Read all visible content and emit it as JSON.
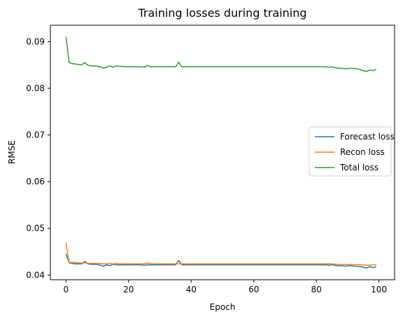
{
  "chart_data": {
    "type": "line",
    "title": "Training losses during training",
    "xlabel": "Epoch",
    "ylabel": "RMSE",
    "xlim": [
      -5,
      105
    ],
    "ylim": [
      0.039,
      0.0935
    ],
    "xticks": [
      0,
      20,
      40,
      60,
      80,
      100
    ],
    "yticks": [
      0.04,
      0.05,
      0.06,
      0.07,
      0.08,
      0.09
    ],
    "ytick_labels": [
      "0.04",
      "0.05",
      "0.06",
      "0.07",
      "0.08",
      "0.09"
    ],
    "legend_position": "center-right",
    "grid": false,
    "series": [
      {
        "name": "Forecast loss",
        "color": "#1f77b4",
        "values": [
          0.0445,
          0.0426,
          0.0425,
          0.0424,
          0.0424,
          0.0424,
          0.0429,
          0.0424,
          0.0423,
          0.0423,
          0.0423,
          0.0421,
          0.0419,
          0.0422,
          0.042,
          0.0423,
          0.0422,
          0.0422,
          0.0422,
          0.0422,
          0.0422,
          0.0422,
          0.0422,
          0.0422,
          0.0422,
          0.0421,
          0.0422,
          0.0422,
          0.0422,
          0.0422,
          0.0422,
          0.0422,
          0.0422,
          0.0422,
          0.0422,
          0.0422,
          0.0431,
          0.0422,
          0.0422,
          0.0422,
          0.0422,
          0.0422,
          0.0422,
          0.0422,
          0.0422,
          0.0422,
          0.0422,
          0.0422,
          0.0422,
          0.0422,
          0.0422,
          0.0422,
          0.0422,
          0.0422,
          0.0422,
          0.0422,
          0.0422,
          0.0422,
          0.0422,
          0.0422,
          0.0422,
          0.0422,
          0.0422,
          0.0422,
          0.0422,
          0.0422,
          0.0422,
          0.0422,
          0.0422,
          0.0422,
          0.0422,
          0.0422,
          0.0422,
          0.0422,
          0.0422,
          0.0422,
          0.0422,
          0.0422,
          0.0422,
          0.0422,
          0.0422,
          0.0422,
          0.0422,
          0.0422,
          0.0421,
          0.0422,
          0.0421,
          0.042,
          0.042,
          0.0419,
          0.042,
          0.042,
          0.0419,
          0.0419,
          0.0418,
          0.0417,
          0.0415,
          0.0418,
          0.0416,
          0.0418
        ]
      },
      {
        "name": "Recon loss",
        "color": "#ff7f0e",
        "values": [
          0.0468,
          0.0427,
          0.0427,
          0.0427,
          0.0426,
          0.0426,
          0.0426,
          0.0425,
          0.0425,
          0.0425,
          0.0425,
          0.0425,
          0.0424,
          0.0424,
          0.0425,
          0.0424,
          0.0425,
          0.0424,
          0.0424,
          0.0424,
          0.0424,
          0.0424,
          0.0424,
          0.0424,
          0.0424,
          0.0424,
          0.0426,
          0.0424,
          0.0424,
          0.0424,
          0.0424,
          0.0424,
          0.0424,
          0.0424,
          0.0424,
          0.0424,
          0.0424,
          0.0424,
          0.0424,
          0.0424,
          0.0424,
          0.0424,
          0.0424,
          0.0424,
          0.0424,
          0.0424,
          0.0424,
          0.0424,
          0.0424,
          0.0424,
          0.0424,
          0.0424,
          0.0424,
          0.0424,
          0.0424,
          0.0424,
          0.0424,
          0.0424,
          0.0424,
          0.0424,
          0.0424,
          0.0424,
          0.0424,
          0.0424,
          0.0424,
          0.0424,
          0.0424,
          0.0424,
          0.0424,
          0.0424,
          0.0424,
          0.0424,
          0.0424,
          0.0424,
          0.0424,
          0.0424,
          0.0424,
          0.0424,
          0.0424,
          0.0424,
          0.0424,
          0.0424,
          0.0424,
          0.0424,
          0.0424,
          0.0424,
          0.0423,
          0.0423,
          0.0422,
          0.0423,
          0.0422,
          0.0423,
          0.0422,
          0.0423,
          0.0422,
          0.0422,
          0.0421,
          0.0421,
          0.0422,
          0.0422
        ]
      },
      {
        "name": "Total loss",
        "color": "#2ca02c",
        "values": [
          0.091,
          0.0855,
          0.0853,
          0.0852,
          0.0851,
          0.085,
          0.0855,
          0.0849,
          0.0848,
          0.0848,
          0.0847,
          0.0846,
          0.0843,
          0.0845,
          0.0848,
          0.0845,
          0.0848,
          0.0847,
          0.0847,
          0.0846,
          0.0846,
          0.0846,
          0.0846,
          0.0846,
          0.0846,
          0.0845,
          0.0849,
          0.0846,
          0.0846,
          0.0846,
          0.0846,
          0.0846,
          0.0846,
          0.0846,
          0.0846,
          0.0846,
          0.0856,
          0.0846,
          0.0846,
          0.0846,
          0.0846,
          0.0846,
          0.0846,
          0.0846,
          0.0846,
          0.0846,
          0.0846,
          0.0846,
          0.0846,
          0.0846,
          0.0846,
          0.0846,
          0.0846,
          0.0846,
          0.0846,
          0.0846,
          0.0846,
          0.0846,
          0.0846,
          0.0846,
          0.0846,
          0.0846,
          0.0846,
          0.0846,
          0.0846,
          0.0846,
          0.0846,
          0.0846,
          0.0846,
          0.0846,
          0.0846,
          0.0846,
          0.0846,
          0.0846,
          0.0846,
          0.0846,
          0.0846,
          0.0846,
          0.0846,
          0.0846,
          0.0846,
          0.0846,
          0.0846,
          0.0846,
          0.0845,
          0.0846,
          0.0844,
          0.0843,
          0.0843,
          0.0842,
          0.0842,
          0.0843,
          0.0842,
          0.0842,
          0.084,
          0.0838,
          0.0836,
          0.0839,
          0.0838,
          0.084
        ]
      }
    ]
  }
}
